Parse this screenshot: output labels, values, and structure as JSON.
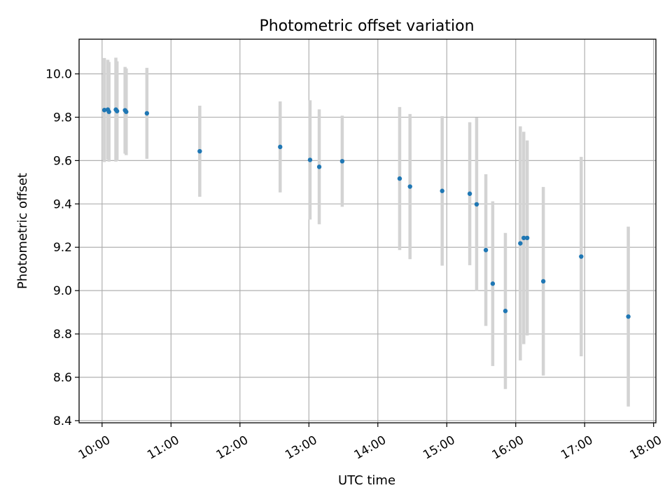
{
  "chart_data": {
    "type": "scatter",
    "title": "Photometric offset variation",
    "xlabel": "UTC time",
    "ylabel": "Photometric offset",
    "xlim": [
      "09:40",
      "18:02"
    ],
    "ylim": [
      8.39,
      10.16
    ],
    "x_ticks": [
      "10:00",
      "11:00",
      "12:00",
      "13:00",
      "14:00",
      "15:00",
      "16:00",
      "17:00",
      "18:00"
    ],
    "y_ticks": [
      "8.4",
      "8.6",
      "8.8",
      "9.0",
      "9.2",
      "9.4",
      "9.6",
      "9.8",
      "10.0"
    ],
    "grid": true,
    "colors": {
      "point": "#1f77b4",
      "errorbar": "#d3d3d3",
      "grid": "#b0b0b0"
    },
    "points": [
      {
        "x": "10:02",
        "y": 9.833,
        "err": 0.24
      },
      {
        "x": "10:05",
        "y": 9.835,
        "err": 0.23
      },
      {
        "x": "10:06",
        "y": 9.825,
        "err": 0.23
      },
      {
        "x": "10:12",
        "y": 9.835,
        "err": 0.24
      },
      {
        "x": "10:13",
        "y": 9.828,
        "err": 0.23
      },
      {
        "x": "10:20",
        "y": 9.832,
        "err": 0.2
      },
      {
        "x": "10:21",
        "y": 9.825,
        "err": 0.2
      },
      {
        "x": "10:39",
        "y": 9.818,
        "err": 0.21
      },
      {
        "x": "11:25",
        "y": 9.643,
        "err": 0.21
      },
      {
        "x": "12:35",
        "y": 9.663,
        "err": 0.21
      },
      {
        "x": "13:01",
        "y": 9.603,
        "err": 0.275
      },
      {
        "x": "13:09",
        "y": 9.571,
        "err": 0.265
      },
      {
        "x": "13:29",
        "y": 9.597,
        "err": 0.21
      },
      {
        "x": "14:19",
        "y": 9.517,
        "err": 0.33
      },
      {
        "x": "14:28",
        "y": 9.48,
        "err": 0.335
      },
      {
        "x": "14:56",
        "y": 9.46,
        "err": 0.345
      },
      {
        "x": "15:20",
        "y": 9.447,
        "err": 0.33
      },
      {
        "x": "15:26",
        "y": 9.398,
        "err": 0.4
      },
      {
        "x": "15:34",
        "y": 9.187,
        "err": 0.35
      },
      {
        "x": "15:40",
        "y": 9.032,
        "err": 0.38
      },
      {
        "x": "15:51",
        "y": 8.906,
        "err": 0.36
      },
      {
        "x": "16:04",
        "y": 9.218,
        "err": 0.54
      },
      {
        "x": "16:07",
        "y": 9.243,
        "err": 0.49
      },
      {
        "x": "16:10",
        "y": 9.243,
        "err": 0.45
      },
      {
        "x": "16:24",
        "y": 9.043,
        "err": 0.435
      },
      {
        "x": "16:57",
        "y": 9.157,
        "err": 0.46
      },
      {
        "x": "17:38",
        "y": 8.88,
        "err": 0.415
      }
    ]
  }
}
